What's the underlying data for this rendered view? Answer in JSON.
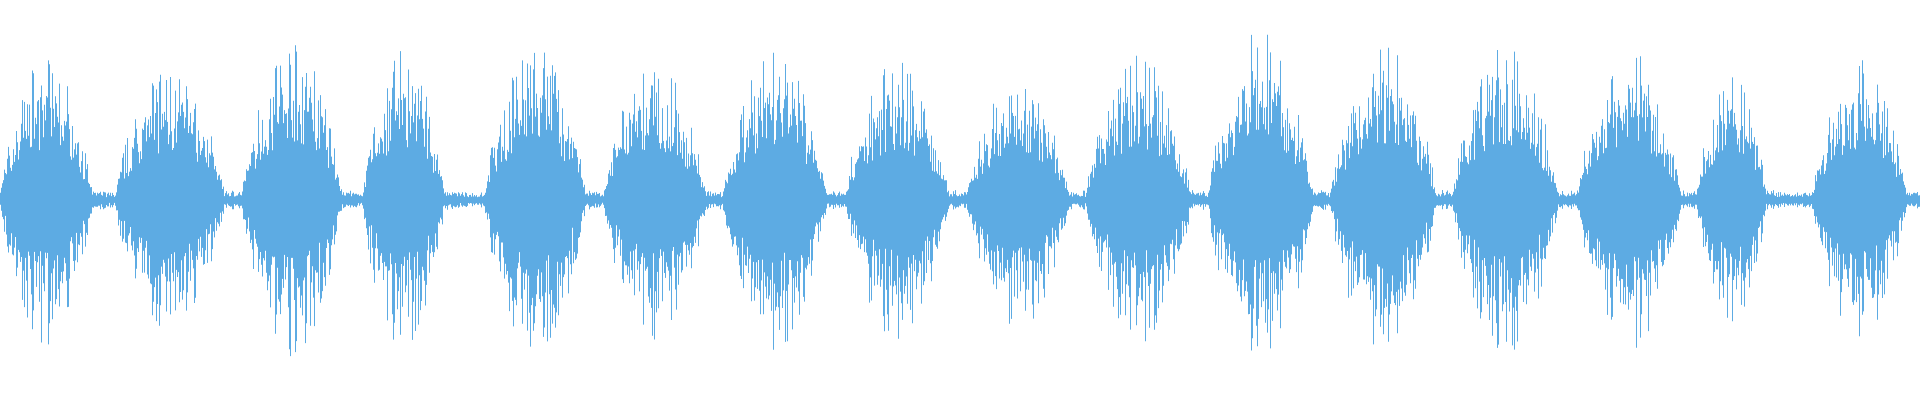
{
  "waveform": {
    "color": "#5dabe3",
    "background": "#ffffff"
  }
}
